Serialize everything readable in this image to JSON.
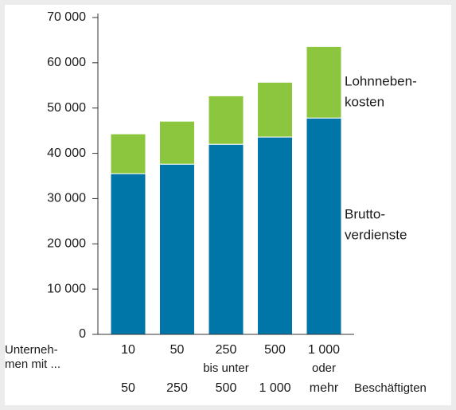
{
  "chart_data": {
    "type": "stacked_bar",
    "categories": [
      "10",
      "50",
      "250",
      "500",
      "1 000"
    ],
    "categories_to": [
      "50",
      "250",
      "500",
      "1 000",
      "mehr"
    ],
    "connector_labels": [
      null,
      null,
      "bis unter",
      null,
      "oder"
    ],
    "x_label_left": [
      "Unterneh-",
      "men mit ..."
    ],
    "x_label_right": "Beschäftigten",
    "series": [
      {
        "name": [
          "Brutto-",
          "verdienste"
        ],
        "color": "#0076a8",
        "values": [
          35500,
          37600,
          42000,
          43600,
          47800
        ]
      },
      {
        "name": [
          "Lohnneben-",
          "kosten"
        ],
        "color": "#8cc63f",
        "values": [
          8800,
          9500,
          10700,
          12100,
          15800
        ]
      }
    ],
    "ylim": [
      0,
      70000
    ],
    "yticks": [
      0,
      {
        "value": 10000,
        "label": "10 000"
      },
      {
        "value": 20000,
        "label": "20 000"
      },
      {
        "value": 30000,
        "label": "30 000"
      },
      {
        "value": 40000,
        "label": "40 000"
      },
      {
        "value": 50000,
        "label": "50 000"
      },
      {
        "value": 60000,
        "label": "60 000"
      },
      {
        "value": 70000,
        "label": "70 000"
      }
    ],
    "grid": false
  }
}
